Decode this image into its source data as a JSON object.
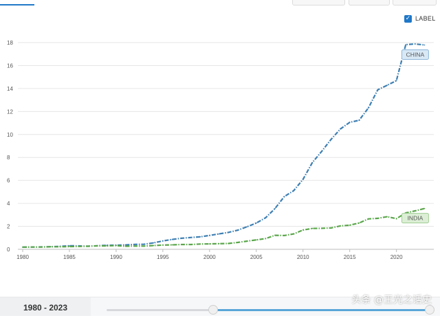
{
  "label_toggle": {
    "text": "LABEL",
    "checked": true,
    "check_glyph": "✓"
  },
  "chart_data": {
    "type": "line",
    "x_ticks": [
      "1980",
      "1985",
      "1990",
      "1995",
      "2000",
      "2005",
      "2010",
      "2015",
      "2020"
    ],
    "y_ticks": [
      "0",
      "2",
      "4",
      "6",
      "8",
      "10",
      "12",
      "14",
      "16",
      "18"
    ],
    "xlim": [
      1980,
      2024
    ],
    "ylim": [
      0,
      18
    ],
    "grid": true,
    "series": [
      {
        "name": "CHINA",
        "color": "#3d7fb3",
        "label_bg": "#d8e8f5",
        "label_border": "#8cb6d8",
        "x": [
          1980,
          1981,
          1982,
          1983,
          1984,
          1985,
          1986,
          1987,
          1988,
          1989,
          1990,
          1991,
          1992,
          1993,
          1994,
          1995,
          1996,
          1997,
          1998,
          1999,
          2000,
          2001,
          2002,
          2003,
          2004,
          2005,
          2006,
          2007,
          2008,
          2009,
          2010,
          2011,
          2012,
          2013,
          2014,
          2015,
          2016,
          2017,
          2018,
          2019,
          2020,
          2021,
          2022,
          2023
        ],
        "values": [
          0.19,
          0.2,
          0.21,
          0.23,
          0.26,
          0.31,
          0.3,
          0.27,
          0.31,
          0.35,
          0.36,
          0.38,
          0.43,
          0.44,
          0.56,
          0.73,
          0.86,
          0.96,
          1.03,
          1.09,
          1.21,
          1.34,
          1.47,
          1.66,
          1.96,
          2.29,
          2.75,
          3.55,
          4.59,
          5.1,
          6.09,
          7.55,
          8.53,
          9.57,
          10.48,
          11.06,
          11.23,
          12.31,
          13.89,
          14.28,
          14.69,
          17.82,
          17.88,
          17.79
        ]
      },
      {
        "name": "INDIA",
        "color": "#5aa64a",
        "label_bg": "#dcefd6",
        "label_border": "#9fcd92",
        "x": [
          1980,
          1981,
          1982,
          1983,
          1984,
          1985,
          1986,
          1987,
          1988,
          1989,
          1990,
          1991,
          1992,
          1993,
          1994,
          1995,
          1996,
          1997,
          1998,
          1999,
          2000,
          2001,
          2002,
          2003,
          2004,
          2005,
          2006,
          2007,
          2008,
          2009,
          2010,
          2011,
          2012,
          2013,
          2014,
          2015,
          2016,
          2017,
          2018,
          2019,
          2020,
          2021,
          2022,
          2023
        ],
        "values": [
          0.19,
          0.2,
          0.2,
          0.22,
          0.22,
          0.24,
          0.25,
          0.27,
          0.3,
          0.3,
          0.32,
          0.27,
          0.29,
          0.28,
          0.33,
          0.37,
          0.39,
          0.42,
          0.42,
          0.46,
          0.47,
          0.49,
          0.51,
          0.6,
          0.71,
          0.82,
          0.94,
          1.22,
          1.2,
          1.34,
          1.68,
          1.82,
          1.83,
          1.86,
          2.04,
          2.1,
          2.29,
          2.65,
          2.7,
          2.84,
          2.67,
          3.17,
          3.35,
          3.55
        ]
      }
    ]
  },
  "time_range": {
    "label": "1980 - 2023",
    "selected_start_fraction": 0.33,
    "selected_end_fraction": 1.0
  },
  "watermark": {
    "text": "头条 @王光之话史"
  }
}
